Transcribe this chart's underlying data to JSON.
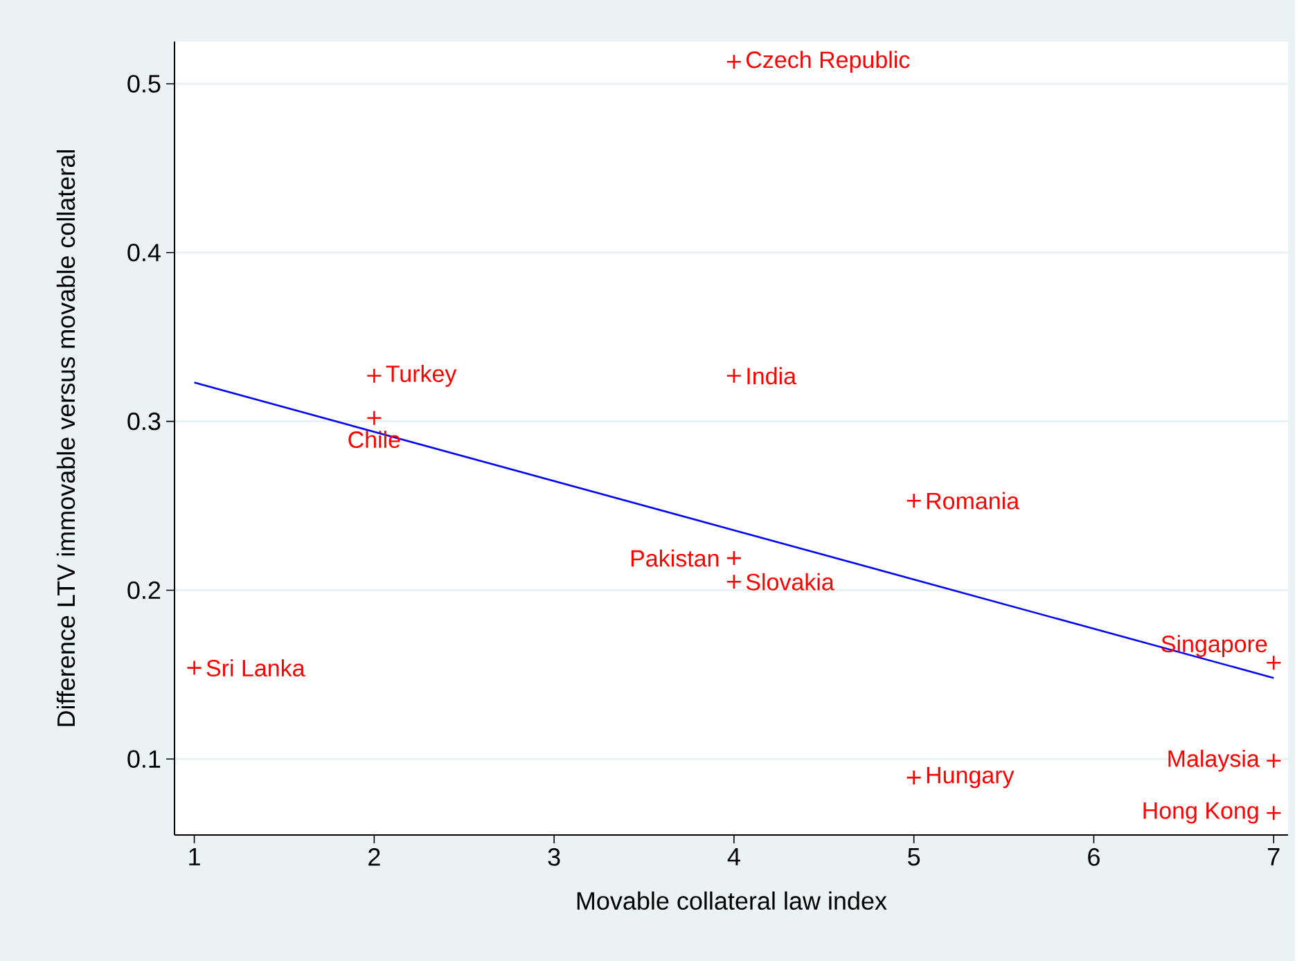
{
  "chart_data": {
    "type": "scatter",
    "xlabel": "Movable collateral law index",
    "ylabel": "Difference LTV immovable versus movable collateral",
    "xlim": [
      0.89,
      7.08
    ],
    "xticks": [
      1,
      2,
      3,
      4,
      5,
      6,
      7
    ],
    "ylim": [
      0.055,
      0.525
    ],
    "yticks": [
      0.1,
      0.2,
      0.3,
      0.4,
      0.5
    ],
    "grid": "y",
    "marker": "cross",
    "series": [
      {
        "type": "scatter",
        "color": "#ff0000",
        "x": [
          4,
          2,
          4,
          2,
          5,
          4,
          4,
          1,
          7,
          7,
          5,
          7
        ],
        "values": [
          0.513,
          0.327,
          0.327,
          0.302,
          0.253,
          0.219,
          0.205,
          0.154,
          0.157,
          0.099,
          0.089,
          0.068
        ]
      },
      {
        "type": "line",
        "color": "#0000ff",
        "marker": "none",
        "x": [
          1,
          7
        ],
        "values": [
          0.323,
          0.148
        ]
      }
    ],
    "annotations": [
      {
        "text": "Czech Republic",
        "x": 4,
        "y": 0.513
      },
      {
        "text": "Turkey",
        "x": 2,
        "y": 0.327
      },
      {
        "text": "India",
        "x": 4,
        "y": 0.327
      },
      {
        "text": "Chile",
        "x": 2,
        "y": 0.302
      },
      {
        "text": "Romania",
        "x": 5,
        "y": 0.253
      },
      {
        "text": "Pakistan",
        "x": 4,
        "y": 0.219
      },
      {
        "text": "Slovakia",
        "x": 4,
        "y": 0.205
      },
      {
        "text": "Sri Lanka",
        "x": 1,
        "y": 0.154
      },
      {
        "text": "Singapore",
        "x": 7,
        "y": 0.157
      },
      {
        "text": "Malaysia",
        "x": 7,
        "y": 0.099
      },
      {
        "text": "Hungary",
        "x": 5,
        "y": 0.089
      },
      {
        "text": "Hong Kong",
        "x": 7,
        "y": 0.068
      }
    ]
  }
}
